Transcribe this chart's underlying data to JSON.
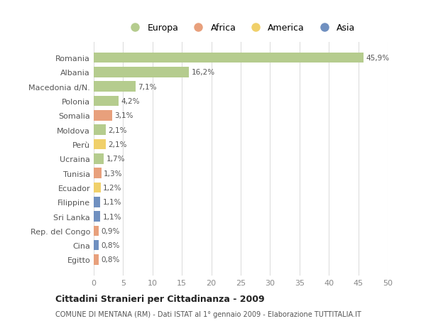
{
  "categories": [
    "Romania",
    "Albania",
    "Macedonia d/N.",
    "Polonia",
    "Somalia",
    "Moldova",
    "Perù",
    "Ucraina",
    "Tunisia",
    "Ecuador",
    "Filippine",
    "Sri Lanka",
    "Rep. del Congo",
    "Cina",
    "Egitto"
  ],
  "values": [
    45.9,
    16.2,
    7.1,
    4.2,
    3.1,
    2.1,
    2.1,
    1.7,
    1.3,
    1.2,
    1.1,
    1.1,
    0.9,
    0.8,
    0.8
  ],
  "labels": [
    "45,9%",
    "16,2%",
    "7,1%",
    "4,2%",
    "3,1%",
    "2,1%",
    "2,1%",
    "1,7%",
    "1,3%",
    "1,2%",
    "1,1%",
    "1,1%",
    "0,9%",
    "0,8%",
    "0,8%"
  ],
  "continents": [
    "Europa",
    "Europa",
    "Europa",
    "Europa",
    "Africa",
    "Europa",
    "America",
    "Europa",
    "Africa",
    "America",
    "Asia",
    "Asia",
    "Africa",
    "Asia",
    "Africa"
  ],
  "colors": {
    "Europa": "#b5cc8e",
    "Africa": "#e8a07c",
    "America": "#f0d06a",
    "Asia": "#7090c0"
  },
  "legend_order": [
    "Europa",
    "Africa",
    "America",
    "Asia"
  ],
  "title": "Cittadini Stranieri per Cittadinanza - 2009",
  "subtitle": "COMUNE DI MENTANA (RM) - Dati ISTAT al 1° gennaio 2009 - Elaborazione TUTTITALIA.IT",
  "xlim": [
    0,
    50
  ],
  "xticks": [
    0,
    5,
    10,
    15,
    20,
    25,
    30,
    35,
    40,
    45,
    50
  ],
  "background_color": "#ffffff",
  "grid_color": "#dddddd",
  "bar_height": 0.72
}
